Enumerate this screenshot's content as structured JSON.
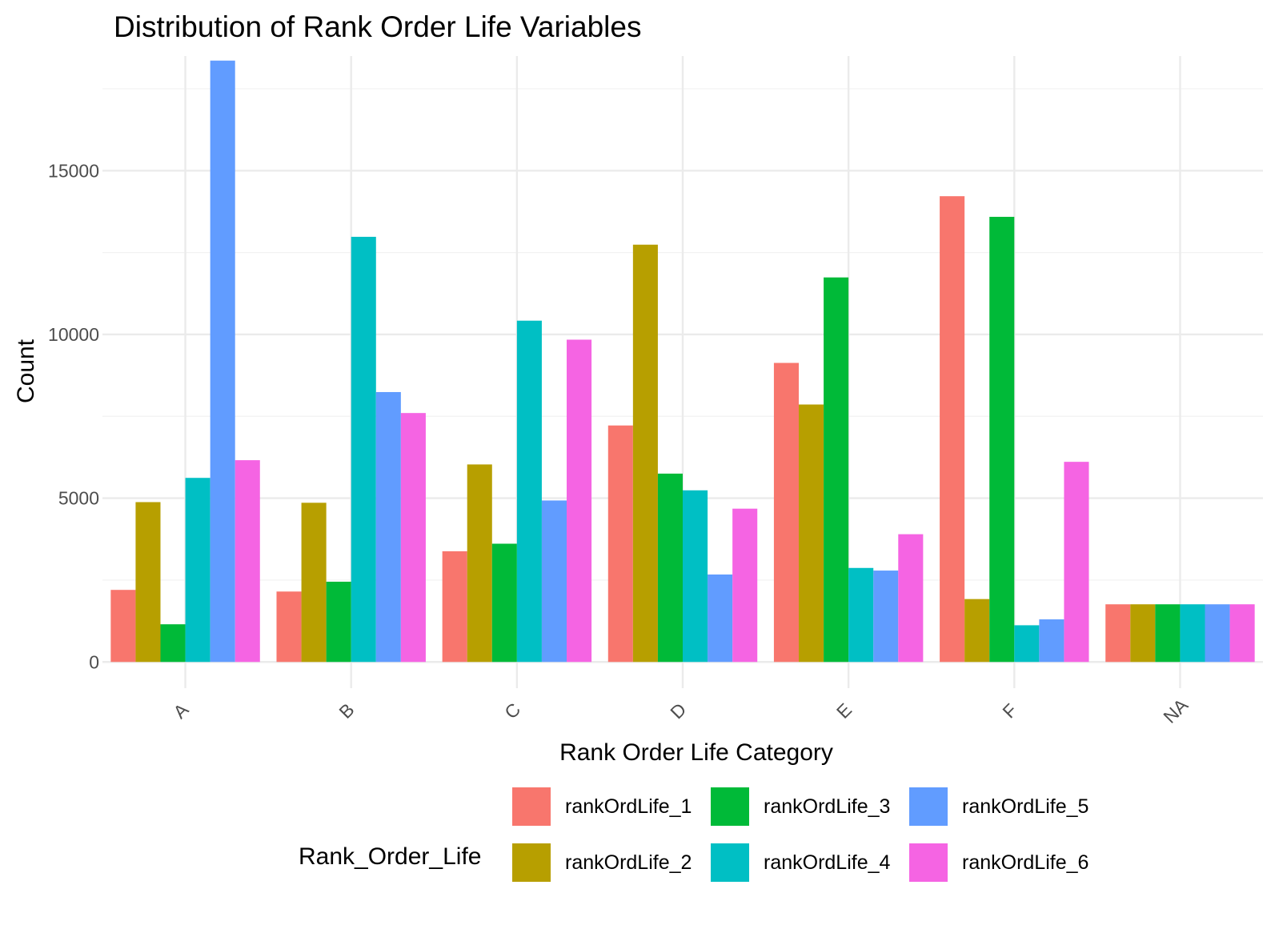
{
  "chart_data": {
    "type": "bar",
    "title": "Distribution of Rank Order Life Variables",
    "xlabel": "Rank Order Life Category",
    "ylabel": "Count",
    "ylim": [
      -800,
      18500
    ],
    "yticks": [
      0,
      5000,
      10000,
      15000
    ],
    "grid": true,
    "legend": {
      "title": "Rank_Order_Life",
      "placement": "bottom"
    },
    "categories": [
      "A",
      "B",
      "C",
      "D",
      "E",
      "F",
      "NA"
    ],
    "series": [
      {
        "name": "rankOrdLife_1",
        "color": "#F8766D",
        "values": [
          2200,
          2150,
          3380,
          7220,
          9130,
          14220,
          1760
        ]
      },
      {
        "name": "rankOrdLife_2",
        "color": "#B79F00",
        "values": [
          4880,
          4860,
          6030,
          12740,
          7860,
          1920,
          1760
        ]
      },
      {
        "name": "rankOrdLife_3",
        "color": "#00BA38",
        "values": [
          1150,
          2450,
          3610,
          5750,
          11740,
          13590,
          1760
        ]
      },
      {
        "name": "rankOrdLife_4",
        "color": "#00BFC4",
        "values": [
          5620,
          12980,
          10420,
          5240,
          2870,
          1120,
          1760
        ]
      },
      {
        "name": "rankOrdLife_5",
        "color": "#619CFF",
        "values": [
          18360,
          8240,
          4930,
          2670,
          2790,
          1300,
          1760
        ]
      },
      {
        "name": "rankOrdLife_6",
        "color": "#F564E3",
        "values": [
          6160,
          7600,
          9840,
          4680,
          3900,
          6110,
          1760
        ]
      }
    ]
  }
}
